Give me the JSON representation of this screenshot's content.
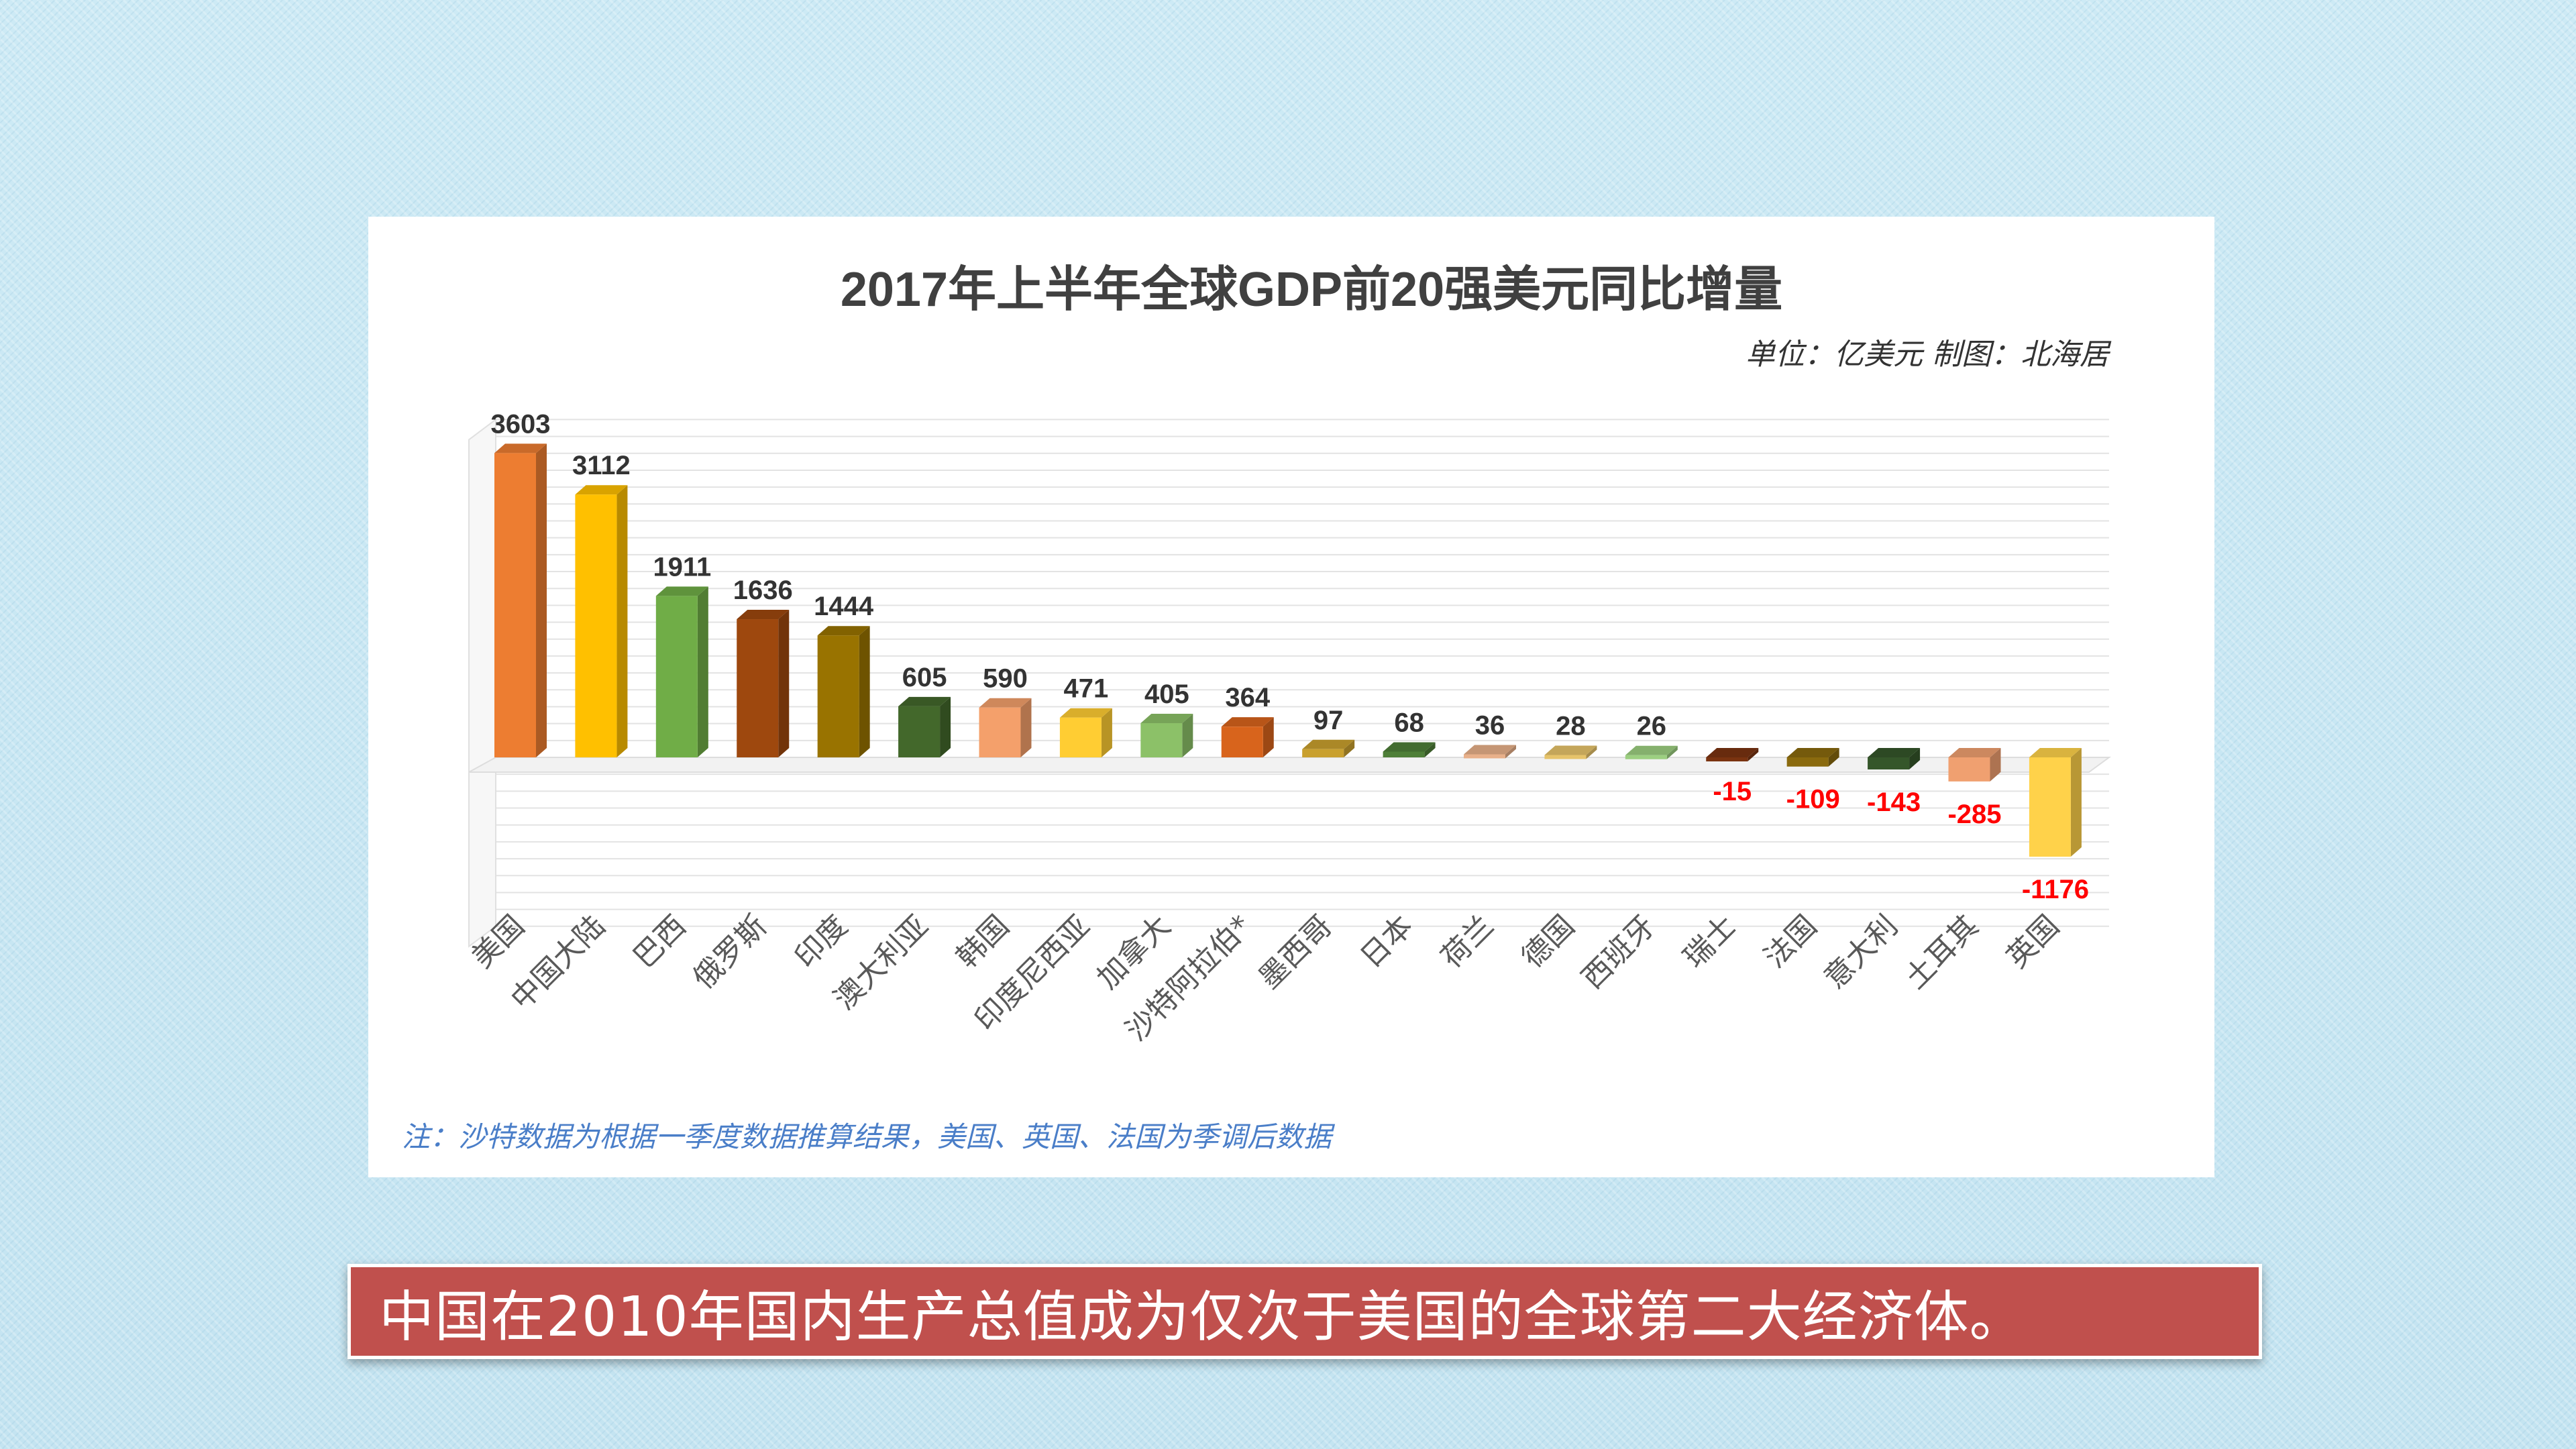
{
  "chart_data": {
    "type": "bar",
    "title": "2017年上半年全球GDP前20强美元同比增量",
    "subtitle": "单位：亿美元  制图：北海居",
    "categories": [
      "美国",
      "中国大陆",
      "巴西",
      "俄罗斯",
      "印度",
      "澳大利亚",
      "韩国",
      "印度尼西亚",
      "加拿大",
      "沙特阿拉伯*",
      "墨西哥",
      "日本",
      "荷兰",
      "德国",
      "西班牙",
      "瑞士",
      "法国",
      "意大利",
      "土耳其",
      "英国"
    ],
    "values": [
      3603,
      3112,
      1911,
      1636,
      1444,
      605,
      590,
      471,
      405,
      364,
      97,
      68,
      36,
      28,
      26,
      -15,
      -109,
      -143,
      -285,
      -1176
    ],
    "value_labels": [
      "3603",
      "3112",
      "1911",
      "1636",
      "1444",
      "605",
      "590",
      "471",
      "405",
      "364",
      "97",
      "68",
      "36",
      "28",
      "26",
      "-15",
      "-109",
      "-143",
      "-285",
      "-1176"
    ],
    "colors": [
      "#ed7d31",
      "#ffc000",
      "#70ad47",
      "#9e480e",
      "#997300",
      "#43682b",
      "#f4a06b",
      "#ffcd33",
      "#8cc168",
      "#d8641c",
      "#c9a02e",
      "#4e7f38",
      "#e8b08a",
      "#e6c36a",
      "#9ccf80",
      "#7a3310",
      "#8a6a0e",
      "#35562a",
      "#f0a070",
      "#ffd24a"
    ],
    "negative_label_color": "#ff0000",
    "positive_label_color": "#333333",
    "ylim": [
      -2000,
      4000
    ],
    "grid": true,
    "note": "注：沙特数据为根据一季度数据推算结果，美国、英国、法国为季调后数据"
  },
  "caption": "中国在2010年国内生产总值成为仅次于美国的全球第二大经济体。"
}
